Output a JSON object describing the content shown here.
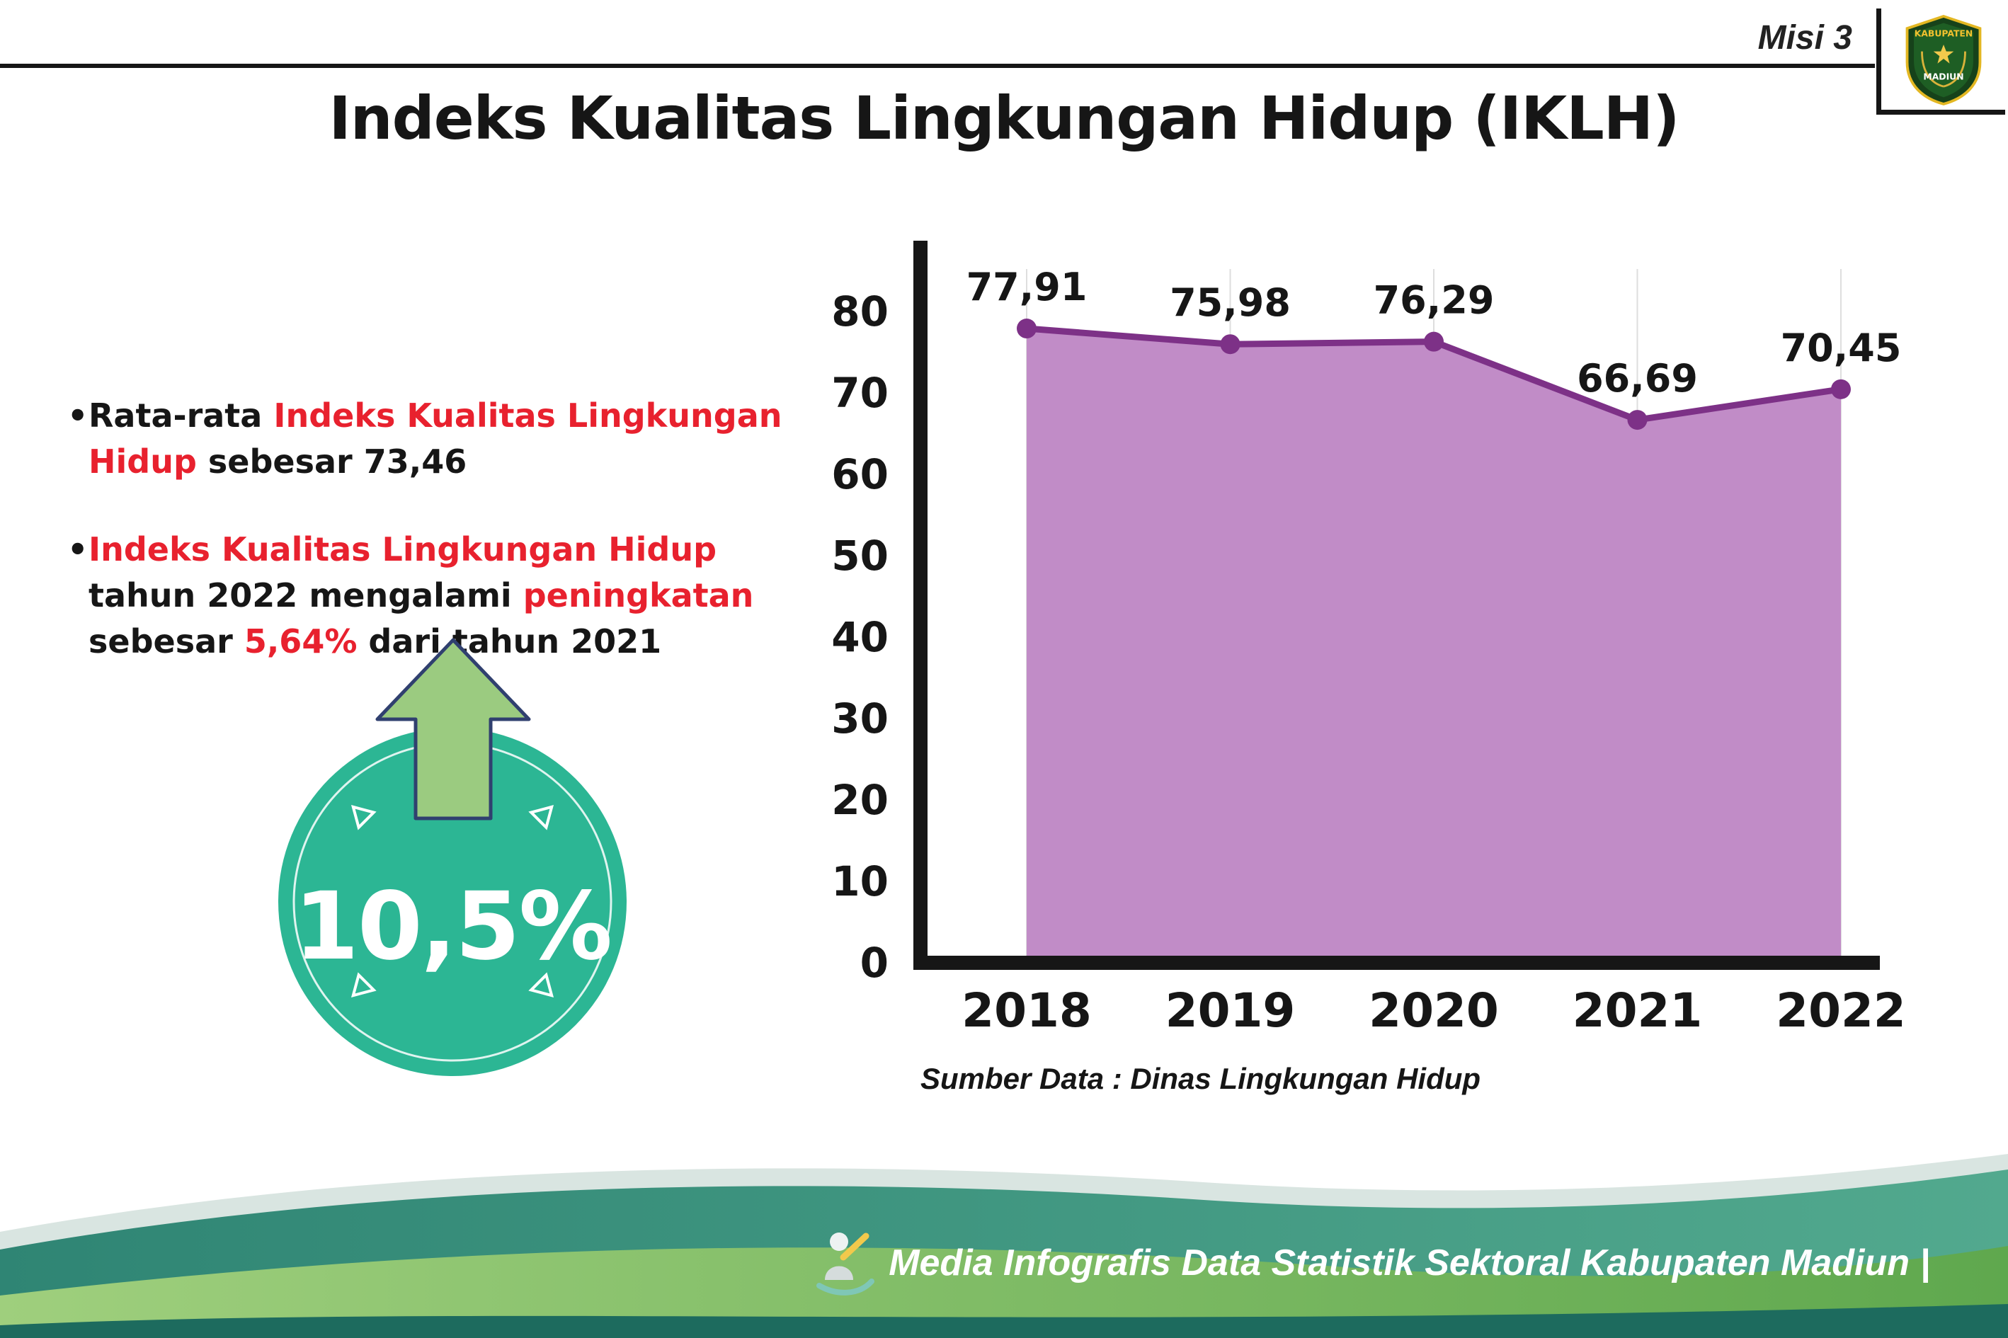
{
  "header": {
    "misi_label": "Misi 3",
    "title": "Indeks Kualitas Lingkungan Hidup (IKLH)",
    "logo": {
      "top_text": "KABUPATEN",
      "bottom_text": "MADIUN"
    }
  },
  "colors": {
    "red": "#e8212e",
    "teal": "#2cb694",
    "arrow_green": "#9bcb80",
    "chart_fill": "#c18cc7",
    "chart_line": "#7d3187",
    "axis": "#161616"
  },
  "bullet_glyph": "•",
  "bullets": {
    "b1": {
      "s1": "Rata-rata ",
      "s2": "Indeks Kualitas Lingkungan Hidup",
      "s3": " sebesar 73,46"
    },
    "b2": {
      "s1": "Indeks Kualitas Lingkungan Hidup",
      "s2": " tahun 2022 mengalami ",
      "s3": "peningkatan",
      "s4": " sebesar ",
      "s5": "5,64%",
      "s6": " dari tahun 2021"
    }
  },
  "badge": {
    "value": "10,5%"
  },
  "chart_data": {
    "type": "area",
    "categories": [
      "2018",
      "2019",
      "2020",
      "2021",
      "2022"
    ],
    "values": [
      77.91,
      75.98,
      76.29,
      66.69,
      70.45
    ],
    "value_labels": [
      "77,91",
      "75,98",
      "76,29",
      "66,69",
      "70,45"
    ],
    "title": "",
    "xlabel": "",
    "ylabel": "",
    "ylim": [
      0,
      80
    ],
    "yticks": [
      0,
      10,
      20,
      30,
      40,
      50,
      60,
      70,
      80
    ],
    "grid": true,
    "legend": "none",
    "source": "Sumber Data : Dinas Lingkungan Hidup",
    "fill_color": "#c18cc7",
    "line_color": "#7d3187"
  },
  "footer": {
    "credit": "Media Infografis Data Statistik Sektoral Kabupaten Madiun |"
  }
}
